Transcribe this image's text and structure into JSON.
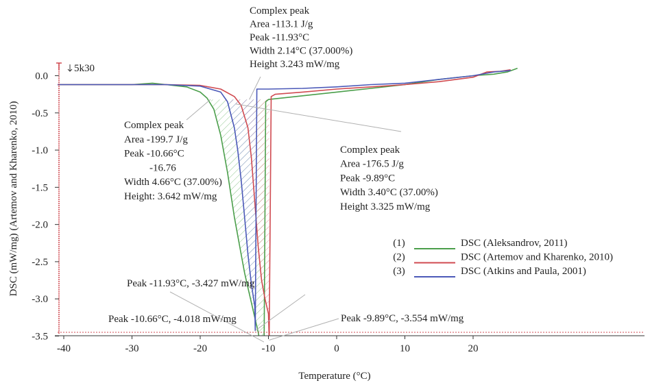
{
  "chart_data": {
    "type": "line",
    "xlabel": "Temperature (°C)",
    "ylabel": "DSC (mW/mg) (Artemov and Kharenko, 2010)",
    "xlim": [
      -41,
      27
    ],
    "ylim": [
      -3.6,
      0.15
    ],
    "x_ticks": [
      "-40",
      "-30",
      "-20",
      "-10",
      "0",
      "10",
      "20"
    ],
    "y_ticks": [
      "0.0",
      "-0.5",
      "-1.0",
      "-1.5",
      "-2.0",
      "-2.5",
      "-3.0",
      "-3.5"
    ],
    "corner_label": "5k30",
    "series": [
      {
        "name": "DSC (Aleksandrov, 2011)",
        "number": "(1)",
        "color": "#4a9e4a",
        "x": [
          -41,
          -35,
          -30,
          -27,
          -25,
          -22,
          -20,
          -19,
          -18,
          -17,
          -16,
          -15,
          -14,
          -13.5,
          -13,
          -12.5,
          -12,
          -11.5,
          -11,
          -10.66,
          -10.4,
          -10,
          -8,
          -5,
          0,
          5,
          10,
          15,
          20,
          23,
          25,
          26.5
        ],
        "y": [
          -0.12,
          -0.12,
          -0.12,
          -0.1,
          -0.12,
          -0.15,
          -0.22,
          -0.3,
          -0.45,
          -0.8,
          -1.3,
          -1.9,
          -2.4,
          -2.65,
          -2.85,
          -3.05,
          -3.25,
          -3.45,
          -3.7,
          -4.018,
          -0.35,
          -0.32,
          -0.3,
          -0.27,
          -0.22,
          -0.17,
          -0.12,
          -0.05,
          0.0,
          0.02,
          0.05,
          0.1
        ]
      },
      {
        "name": "DSC (Artemov and Kharenko, 2010)",
        "number": "(2)",
        "color": "#d04a50",
        "x": [
          -41,
          -35,
          -30,
          -25,
          -20,
          -17,
          -15,
          -14,
          -13,
          -12.5,
          -12,
          -11.5,
          -11,
          -10.5,
          -10,
          -9.89,
          -9.6,
          -9,
          -5,
          0,
          5,
          10,
          15,
          20,
          22,
          24,
          25.5
        ],
        "y": [
          -0.12,
          -0.12,
          -0.12,
          -0.12,
          -0.13,
          -0.18,
          -0.28,
          -0.4,
          -0.7,
          -1.1,
          -1.7,
          -2.3,
          -2.75,
          -3.0,
          -3.2,
          -3.554,
          -0.28,
          -0.25,
          -0.22,
          -0.18,
          -0.15,
          -0.12,
          -0.08,
          -0.02,
          0.05,
          0.06,
          0.08
        ]
      },
      {
        "name": "DSC (Atkins and Paula, 2001)",
        "number": "(3)",
        "color": "#4a58b8",
        "x": [
          -41,
          -35,
          -30,
          -25,
          -20,
          -17,
          -16,
          -15,
          -14.5,
          -14,
          -13.5,
          -13,
          -12.5,
          -12,
          -11.93,
          -11.7,
          -11.5,
          -10,
          -5,
          0,
          5,
          10,
          15,
          20,
          23,
          25.5
        ],
        "y": [
          -0.12,
          -0.12,
          -0.12,
          -0.12,
          -0.14,
          -0.22,
          -0.35,
          -0.7,
          -1.0,
          -1.4,
          -1.9,
          -2.4,
          -2.8,
          -3.1,
          -3.427,
          -0.18,
          -0.18,
          -0.18,
          -0.17,
          -0.15,
          -0.12,
          -0.1,
          -0.05,
          0.0,
          0.05,
          0.07
        ]
      }
    ],
    "annotations": [
      {
        "lines": [
          "Complex peak",
          "Area -113.1 J/g",
          "Peak -11.93°C",
          "Width 2.14°C (37.000%)",
          "Height 3.243 mW/mg"
        ],
        "point": [
          -12.8,
          -0.32
        ]
      },
      {
        "lines": [
          "Complex peak",
          "Area -199.7 J/g",
          "Peak -10.66°C",
          "-16.76",
          "Width 4.66°C (37.00%)",
          "Height: 3.642 mW/mg"
        ],
        "point": [
          -18.5,
          -0.32
        ]
      },
      {
        "lines": [
          "Complex peak",
          "Area -176.5 J/g",
          "Peak -9.89°C",
          "Width 3.40°C (37.00%)",
          "Height 3.325 mW/mg"
        ],
        "point": [
          -14.8,
          -0.38
        ]
      },
      {
        "lines": [
          "Peak -11.93°C, -3.427 mW/mg"
        ],
        "point": [
          -11.93,
          -3.427
        ]
      },
      {
        "lines": [
          "Peak -10.66°C, -4.018 mW/mg"
        ],
        "point": [
          -10.66,
          -3.58
        ]
      },
      {
        "lines": [
          "Peak -9.89°C, -3.554 mW/mg"
        ],
        "point": [
          -9.89,
          -3.554
        ]
      }
    ]
  }
}
